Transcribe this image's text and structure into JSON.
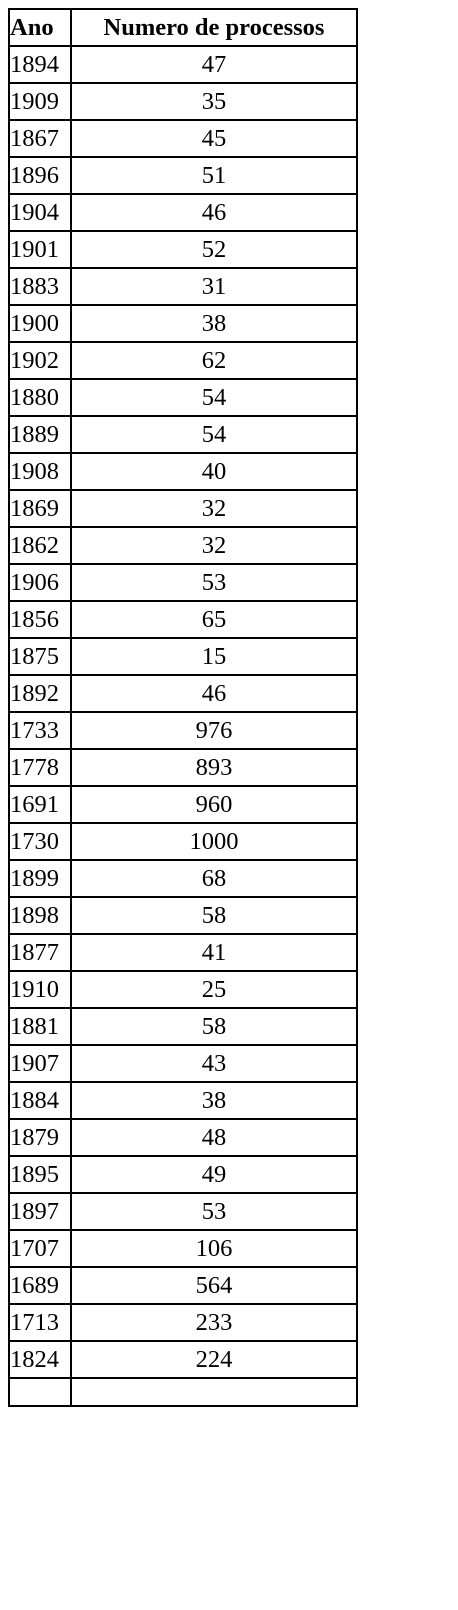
{
  "table": {
    "headers": {
      "year": "Ano",
      "count": "Numero de processos"
    },
    "rows": [
      {
        "year": "1894",
        "count": "47"
      },
      {
        "year": "1909",
        "count": "35"
      },
      {
        "year": "1867",
        "count": "45"
      },
      {
        "year": "1896",
        "count": "51"
      },
      {
        "year": "1904",
        "count": "46"
      },
      {
        "year": "1901",
        "count": "52"
      },
      {
        "year": "1883",
        "count": "31"
      },
      {
        "year": "1900",
        "count": "38"
      },
      {
        "year": "1902",
        "count": "62"
      },
      {
        "year": "1880",
        "count": "54"
      },
      {
        "year": "1889",
        "count": "54"
      },
      {
        "year": "1908",
        "count": "40"
      },
      {
        "year": "1869",
        "count": "32"
      },
      {
        "year": "1862",
        "count": "32"
      },
      {
        "year": "1906",
        "count": "53"
      },
      {
        "year": "1856",
        "count": "65"
      },
      {
        "year": "1875",
        "count": "15"
      },
      {
        "year": "1892",
        "count": "46"
      },
      {
        "year": "1733",
        "count": "976"
      },
      {
        "year": "1778",
        "count": "893"
      },
      {
        "year": "1691",
        "count": "960"
      },
      {
        "year": "1730",
        "count": "1000"
      },
      {
        "year": "1899",
        "count": "68"
      },
      {
        "year": "1898",
        "count": "58"
      },
      {
        "year": "1877",
        "count": "41"
      },
      {
        "year": "1910",
        "count": "25"
      },
      {
        "year": "1881",
        "count": "58"
      },
      {
        "year": "1907",
        "count": "43"
      },
      {
        "year": "1884",
        "count": "38"
      },
      {
        "year": "1879",
        "count": "48"
      },
      {
        "year": "1895",
        "count": "49"
      },
      {
        "year": "1897",
        "count": "53"
      },
      {
        "year": "1707",
        "count": "106"
      },
      {
        "year": "1689",
        "count": "564"
      },
      {
        "year": "1713",
        "count": "233"
      },
      {
        "year": "1824",
        "count": "224"
      },
      {
        "year": "",
        "count": ""
      }
    ]
  }
}
